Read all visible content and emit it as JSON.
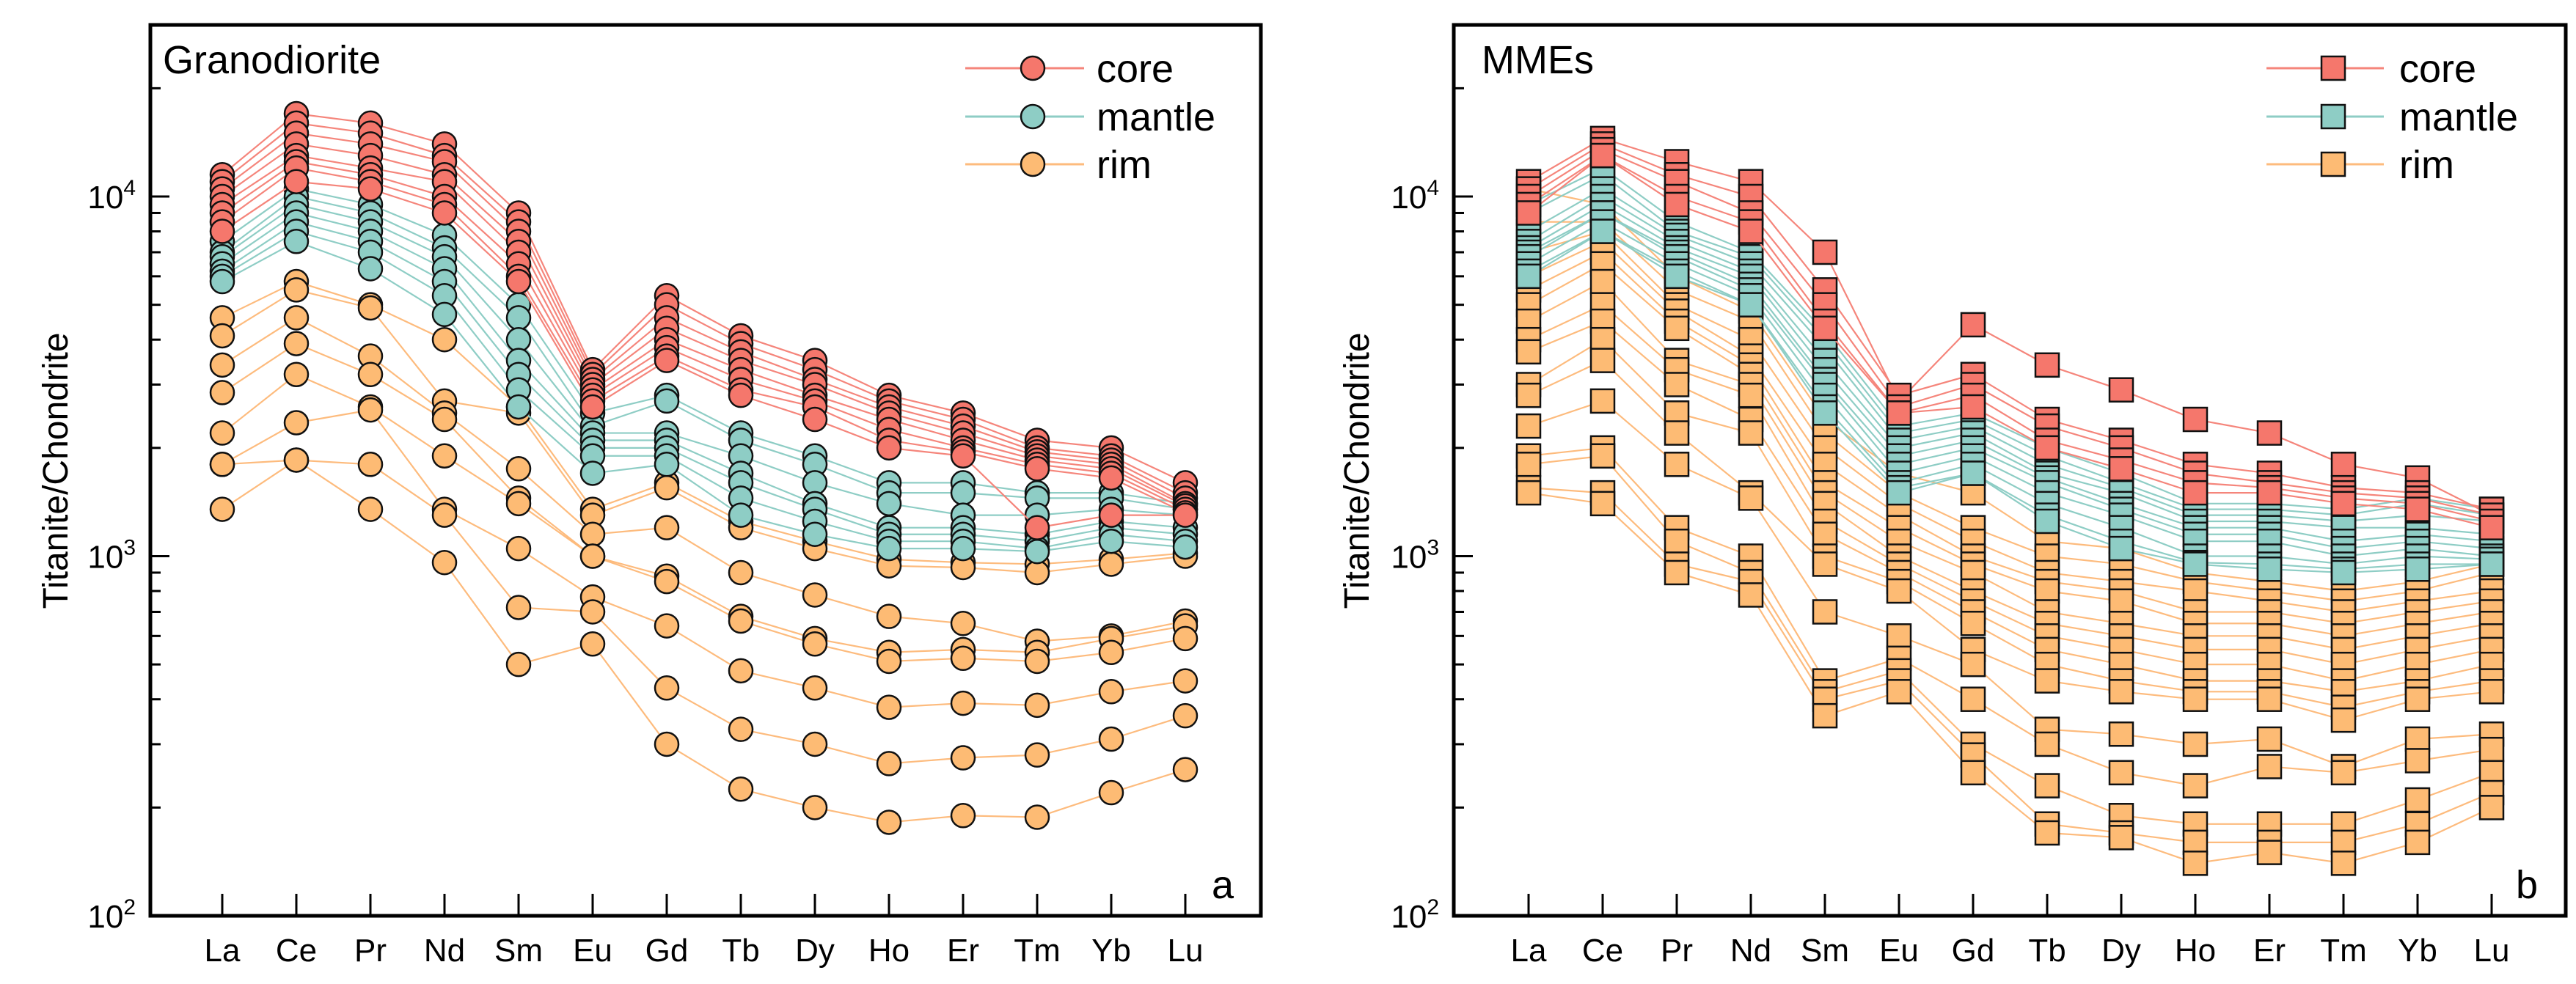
{
  "chart_data": [
    {
      "type": "line",
      "title": "Granodiorite",
      "panel_label": "a",
      "marker": "circle",
      "ylabel": "Titanite/Chondrite",
      "xlabel": "",
      "yscale": "log",
      "ylim": [
        100,
        30000
      ],
      "yticks": [
        {
          "base": "10",
          "exp": "2",
          "value": 100
        },
        {
          "base": "10",
          "exp": "3",
          "value": 1000
        },
        {
          "base": "10",
          "exp": "4",
          "value": 10000
        }
      ],
      "categories": [
        "La",
        "Ce",
        "Pr",
        "Nd",
        "Sm",
        "Eu",
        "Gd",
        "Tb",
        "Dy",
        "Ho",
        "Er",
        "Tm",
        "Yb",
        "Lu"
      ],
      "legend": {
        "placement": "top-right",
        "entries": [
          "core",
          "mantle",
          "rim"
        ]
      },
      "groups": [
        {
          "name": "rim",
          "fill": "#FDBB74",
          "line": "#FDBB7D",
          "series": [
            [
              4600,
              5800,
              5000,
              4000,
              2600,
              1350,
              1600,
              1250,
              1100,
              980,
              960,
              950,
              980,
              1020
            ],
            [
              4100,
              5500,
              4900,
              2700,
              2500,
              1300,
              1550,
              1200,
              1050,
              940,
              930,
              900,
              950,
              1000
            ],
            [
              3400,
              4600,
              3600,
              2500,
              1750,
              1150,
              1200,
              900,
              780,
              680,
              650,
              580,
              600,
              660
            ],
            [
              2850,
              3900,
              3200,
              2400,
              1450,
              1000,
              880,
              680,
              590,
              540,
              550,
              540,
              590,
              640
            ],
            [
              2200,
              3200,
              2600,
              1900,
              1400,
              1000,
              850,
              660,
              570,
              510,
              520,
              510,
              540,
              590
            ],
            [
              1800,
              2350,
              2550,
              1350,
              1050,
              770,
              640,
              480,
              430,
              380,
              390,
              385,
              420,
              450
            ],
            [
              1350,
              1850,
              1800,
              1300,
              720,
              700,
              430,
              330,
              300,
              265,
              275,
              280,
              310,
              360
            ],
            [
              1800,
              1850,
              1350,
              960,
              500,
              570,
              300,
              225,
              200,
              182,
              190,
              188,
              220,
              255
            ]
          ]
        },
        {
          "name": "mantle",
          "fill": "#8ECDC5",
          "line": "#8ECDC5",
          "series": [
            [
              7500,
              10500,
              9500,
              7800,
              5000,
              2500,
              2800,
              2200,
              1900,
              1600,
              1600,
              1500,
              1500,
              1400
            ],
            [
              7000,
              10000,
              9000,
              7200,
              4600,
              2300,
              2700,
              2100,
              1800,
              1500,
              1500,
              1450,
              1450,
              1350
            ],
            [
              6800,
              9500,
              8500,
              6800,
              4000,
              2200,
              2200,
              1900,
              1600,
              1400,
              1300,
              1300,
              1350,
              1300
            ],
            [
              6500,
              9000,
              8000,
              6300,
              3500,
              2100,
              2100,
              1700,
              1400,
              1200,
              1200,
              1150,
              1250,
              1200
            ],
            [
              6200,
              8500,
              7500,
              5800,
              3200,
              2000,
              2000,
              1600,
              1350,
              1150,
              1150,
              1100,
              1200,
              1150
            ],
            [
              6000,
              8000,
              7000,
              5300,
              2900,
              1900,
              1900,
              1450,
              1250,
              1100,
              1100,
              1050,
              1150,
              1100
            ],
            [
              5800,
              7500,
              6300,
              4700,
              2600,
              1700,
              1800,
              1300,
              1150,
              1050,
              1050,
              1030,
              1100,
              1060
            ]
          ]
        },
        {
          "name": "core",
          "fill": "#F5776C",
          "line": "#F5857B",
          "series": [
            [
              11500,
              17000,
              16000,
              14000,
              9000,
              3300,
              5300,
              4100,
              3500,
              2800,
              2500,
              2100,
              2000,
              1600
            ],
            [
              11000,
              16000,
              15000,
              13000,
              8500,
              3200,
              5000,
              3900,
              3300,
              2700,
              2400,
              2000,
              1900,
              1500
            ],
            [
              10500,
              15000,
              14000,
              12500,
              8000,
              3100,
              4600,
              3700,
              3100,
              2600,
              2300,
              1950,
              1850,
              1450
            ],
            [
              10000,
              14000,
              13000,
              11500,
              7500,
              3000,
              4300,
              3500,
              3000,
              2500,
              2200,
              1900,
              1800,
              1400
            ],
            [
              9500,
              13000,
              12000,
              11000,
              7000,
              2900,
              4000,
              3300,
              2800,
              2400,
              2100,
              1850,
              1750,
              1380
            ],
            [
              9000,
              12500,
              11500,
              10000,
              6500,
              2800,
              3800,
              3100,
              2700,
              2250,
              2000,
              1800,
              1700,
              1350
            ],
            [
              8500,
              12000,
              11000,
              9500,
              6000,
              2700,
              3600,
              2900,
              2600,
              2100,
              1950,
              1750,
              1650,
              1320
            ],
            [
              8000,
              11000,
              10500,
              9000,
              5800,
              2600,
              3500,
              2800,
              2400,
              2000,
              1900,
              1200,
              1300,
              1300
            ]
          ]
        }
      ]
    },
    {
      "type": "line",
      "title": "MMEs",
      "panel_label": "b",
      "marker": "square",
      "ylabel": "Titanite/Chondrite",
      "xlabel": "",
      "yscale": "log",
      "ylim": [
        100,
        30000
      ],
      "yticks": [
        {
          "base": "10",
          "exp": "2",
          "value": 100
        },
        {
          "base": "10",
          "exp": "3",
          "value": 1000
        },
        {
          "base": "10",
          "exp": "4",
          "value": 10000
        }
      ],
      "categories": [
        "La",
        "Ce",
        "Pr",
        "Nd",
        "Sm",
        "Eu",
        "Gd",
        "Tb",
        "Dy",
        "Ho",
        "Er",
        "Tm",
        "Yb",
        "Lu"
      ],
      "legend": {
        "placement": "top-right",
        "entries": [
          "core",
          "mantle",
          "rim"
        ]
      },
      "groups": [
        {
          "name": "rim",
          "fill": "#FDBB74",
          "line": "#FDBB7D",
          "series": [
            [
              10500,
              9500,
              6000,
              4800,
              2400,
              1700,
              1500,
              1100,
              1050,
              900,
              850,
              800,
              850,
              950
            ],
            [
              8500,
              8500,
              5500,
              4500,
              2200,
              1500,
              1200,
              1000,
              950,
              850,
              800,
              750,
              800,
              900
            ],
            [
              7000,
              8000,
              5000,
              4000,
              2000,
              1400,
              1100,
              900,
              850,
              800,
              750,
              700,
              750,
              800
            ],
            [
              6000,
              7500,
              4800,
              3600,
              1800,
              1300,
              1000,
              850,
              800,
              700,
              700,
              650,
              700,
              750
            ],
            [
              5500,
              7000,
              4500,
              3400,
              1600,
              1200,
              950,
              800,
              750,
              650,
              650,
              600,
              650,
              700
            ],
            [
              5000,
              6500,
              4300,
              3200,
              1500,
              1100,
              900,
              700,
              650,
              600,
              600,
              550,
              600,
              650
            ],
            [
              4500,
              5800,
              3500,
              3000,
              1400,
              1000,
              800,
              650,
              600,
              550,
              550,
              500,
              550,
              600
            ],
            [
              4000,
              5000,
              3300,
              2800,
              1250,
              950,
              750,
              600,
              550,
              500,
              500,
              450,
              500,
              550
            ],
            [
              3700,
              4500,
              3000,
              2400,
              1150,
              900,
              700,
              550,
              500,
              450,
              450,
              420,
              450,
              500
            ],
            [
              3000,
              4000,
              2500,
              2200,
              1000,
              850,
              650,
              500,
              450,
              420,
              420,
              380,
              420,
              450
            ],
            [
              2800,
              3500,
              2200,
              1500,
              950,
              800,
              550,
              450,
              420,
              400,
              400,
              350,
              400,
              420
            ],
            [
              2300,
              2700,
              1800,
              1450,
              700,
              600,
              500,
              330,
              320,
              300,
              310,
              260,
              310,
              320
            ],
            [
              1900,
              2000,
              1200,
              1000,
              450,
              520,
              400,
              300,
              250,
              230,
              260,
              250,
              270,
              290
            ],
            [
              1800,
              1900,
              1100,
              900,
              420,
              480,
              300,
              230,
              190,
              180,
              180,
              180,
              210,
              250
            ],
            [
              1550,
              1500,
              950,
              850,
              400,
              450,
              280,
              180,
              170,
              160,
              160,
              160,
              180,
              220
            ],
            [
              1500,
              1400,
              900,
              780,
              360,
              420,
              250,
              170,
              165,
              140,
              150,
              140,
              160,
              200
            ]
          ]
        },
        {
          "name": "mantle",
          "fill": "#8ECDC5",
          "line": "#8ECDC5",
          "series": [
            [
              9500,
              12000,
              8500,
              7000,
              4200,
              2300,
              2500,
              2000,
              1700,
              1400,
              1400,
              1350,
              1450,
              1350
            ],
            [
              9000,
              11500,
              8000,
              6800,
              4000,
              2200,
              2400,
              1900,
              1600,
              1350,
              1350,
              1300,
              1400,
              1300
            ],
            [
              8000,
              10500,
              7800,
              6500,
              3800,
              2100,
              2300,
              1800,
              1550,
              1300,
              1300,
              1250,
              1300,
              1250
            ],
            [
              7500,
              10000,
              7500,
              6200,
              3500,
              2000,
              2200,
              1700,
              1500,
              1250,
              1250,
              1200,
              1200,
              1150
            ],
            [
              7200,
              9500,
              7200,
              6000,
              3300,
              1900,
              2100,
              1650,
              1400,
              1200,
              1200,
              1100,
              1150,
              1100
            ],
            [
              7000,
              9000,
              7000,
              5700,
              3100,
              1800,
              2000,
              1600,
              1350,
              1150,
              1150,
              1050,
              1100,
              1050
            ],
            [
              6800,
              9000,
              6800,
              5500,
              3000,
              1700,
              1900,
              1500,
              1300,
              1100,
              1100,
              1000,
              1050,
              1000
            ],
            [
              6500,
              8500,
              6500,
              5300,
              2800,
              1600,
              1800,
              1400,
              1200,
              1000,
              1000,
              950,
              1000,
              980
            ],
            [
              6200,
              8000,
              6200,
              5000,
              2600,
              1550,
              1700,
              1300,
              1100,
              960,
              950,
              920,
              950,
              950
            ],
            [
              6000,
              8000,
              6000,
              5000,
              2500,
              1500,
              1700,
              1250,
              1050,
              950,
              920,
              900,
              920,
              950
            ]
          ]
        },
        {
          "name": "core",
          "fill": "#F5776C",
          "line": "#F5857B",
          "series": [
            [
              11000,
              14500,
              12500,
              11000,
              7000,
              2700,
              4400,
              3400,
              2900,
              2400,
              2200,
              1800,
              1650,
              1300
            ],
            [
              10500,
              14000,
              11500,
              10000,
              5500,
              2800,
              3200,
              2400,
              2100,
              1800,
              1700,
              1550,
              1500,
              1350
            ],
            [
              10000,
              13500,
              11000,
              9000,
              5000,
              2600,
              3000,
              2300,
              2000,
              1700,
              1600,
              1500,
              1450,
              1300
            ],
            [
              9500,
              13000,
              10000,
              8500,
              4500,
              2500,
              2800,
              2100,
              1850,
              1600,
              1550,
              1450,
              1400,
              1250
            ],
            [
              9000,
              13000,
              9500,
              8000,
              4300,
              2500,
              2600,
              2000,
              1750,
              1500,
              1500,
              1400,
              1350,
              1200
            ]
          ]
        }
      ]
    }
  ]
}
